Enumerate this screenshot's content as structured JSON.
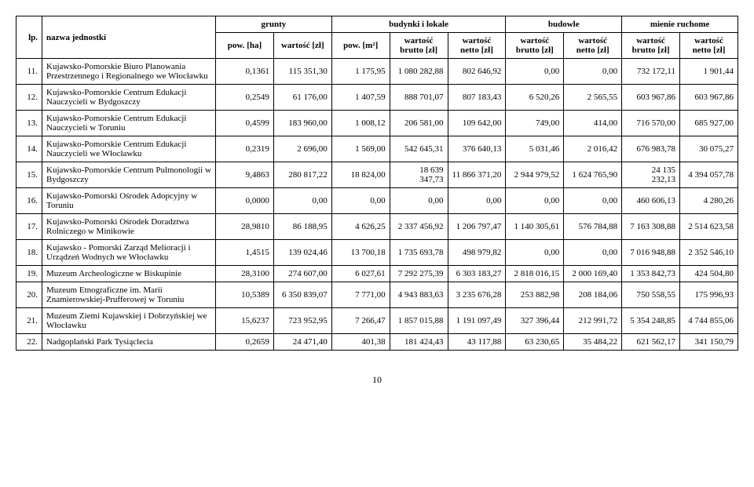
{
  "header": {
    "lp": "lp.",
    "name": "nazwa\njednostki",
    "groups": {
      "grunty": "grunty",
      "budynki": "budynki i lokale",
      "budowle": "budowle",
      "mienie": "mienie ruchome"
    },
    "sub": {
      "pow_ha": "pow. [ha]",
      "wartosc_zl": "wartość [zł]",
      "pow_m2": "pow. [m²]",
      "w_brutto": "wartość brutto\n[zł]",
      "w_netto": "wartość netto\n[zł]"
    }
  },
  "rows": [
    {
      "lp": "11.",
      "name": "Kujawsko-Pomorskie Biuro Planowania Przestrzennego i Regionalnego we Włocławku",
      "c": [
        "0,1361",
        "115 351,30",
        "1 175,95",
        "1 080 282,88",
        "802 646,92",
        "0,00",
        "0,00",
        "732 172,11",
        "1 901,44"
      ]
    },
    {
      "lp": "12.",
      "name": "Kujawsko-Pomorskie Centrum Edukacji Nauczycieli w Bydgoszczy",
      "c": [
        "0,2549",
        "61 176,00",
        "1 407,59",
        "888 701,07",
        "807 183,43",
        "6 520,26",
        "2 565,55",
        "603 967,86",
        "603 967,86"
      ]
    },
    {
      "lp": "13.",
      "name": "Kujawsko-Pomorskie Centrum Edukacji Nauczycieli w Toruniu",
      "c": [
        "0,4599",
        "183 960,00",
        "1 008,12",
        "206 581,00",
        "109 642,00",
        "749,00",
        "414,00",
        "716 570,00",
        "685 927,00"
      ]
    },
    {
      "lp": "14.",
      "name": "Kujawsko-Pomorskie Centrum Edukacji Nauczycieli we Włocławku",
      "c": [
        "0,2319",
        "2 696,00",
        "1 569,00",
        "542 645,31",
        "376 640,13",
        "5 031,46",
        "2 016,42",
        "676 983,78",
        "30 075,27"
      ]
    },
    {
      "lp": "15.",
      "name": "Kujawsko-Pomorskie Centrum Pulmonologii w Bydgoszczy",
      "c": [
        "9,4863",
        "280 817,22",
        "18 824,00",
        "18 639 347,73",
        "11 866 371,20",
        "2 944 979,52",
        "1 624 765,90",
        "24 135 232,13",
        "4 394 057,78"
      ]
    },
    {
      "lp": "16.",
      "name": "Kujawsko-Pomorski Ośrodek Adopcyjny w Toruniu",
      "c": [
        "0,0000",
        "0,00",
        "0,00",
        "0,00",
        "0,00",
        "0,00",
        "0,00",
        "460 606,13",
        "4 280,26"
      ]
    },
    {
      "lp": "17.",
      "name": "Kujawsko-Pomorski Ośrodek Doradztwa Rolniczego w Minikowie",
      "c": [
        "28,9810",
        "86 188,95",
        "4 626,25",
        "2 337 456,92",
        "1 206 797,47",
        "1 140 305,61",
        "576 784,88",
        "7 163 308,88",
        "2 514 623,58"
      ]
    },
    {
      "lp": "18.",
      "name": "Kujawsko - Pomorski Zarząd Melioracji i Urządzeń Wodnych we Włocławku",
      "c": [
        "1,4515",
        "139 024,46",
        "13 700,18",
        "1 735 693,78",
        "498 979,82",
        "0,00",
        "0,00",
        "7 016 948,88",
        "2 352 546,10"
      ]
    },
    {
      "lp": "19.",
      "name": "Muzeum Archeologiczne w Biskupinie",
      "c": [
        "28,3100",
        "274 607,00",
        "6 027,61",
        "7 292 275,39",
        "6 303 183,27",
        "2 818 016,15",
        "2 000 169,40",
        "1 353 842,73",
        "424 504,80"
      ]
    },
    {
      "lp": "20.",
      "name": "Muzeum Etnograficzne im. Marii Znamierowskiej-Prufferowej w Toruniu",
      "c": [
        "10,5389",
        "6 350 839,07",
        "7 771,00",
        "4 943 883,63",
        "3 235 676,28",
        "253 882,98",
        "208 184,06",
        "750 558,55",
        "175 996,93"
      ]
    },
    {
      "lp": "21.",
      "name": "Muzeum Ziemi Kujawskiej i Dobrzyńskiej we Włocławku",
      "c": [
        "15,6237",
        "723 952,95",
        "7 266,47",
        "1 857 015,88",
        "1 191 097,49",
        "327 396,44",
        "212 991,72",
        "5 354 248,85",
        "4 744 855,06"
      ]
    },
    {
      "lp": "22.",
      "name": "Nadgoplański Park Tysiąclecia",
      "c": [
        "0,2659",
        "24 471,40",
        "401,38",
        "181 424,43",
        "43 117,88",
        "63 230,65",
        "35 484,22",
        "621 562,17",
        "341 150,79"
      ]
    }
  ],
  "pageNumber": "10"
}
